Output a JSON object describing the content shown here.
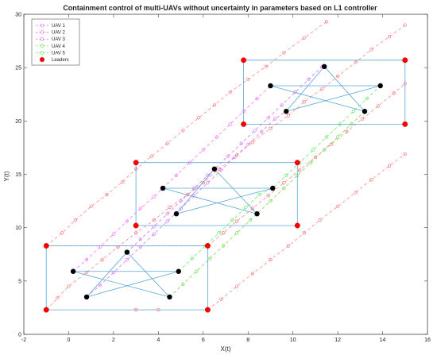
{
  "chart_data": {
    "type": "scatter",
    "title": "Containment control of multi-UAVs without uncertainty in parameters based on L1 controller",
    "xlabel": "X(t)",
    "ylabel": "Y(t)",
    "xlim": [
      -2,
      16
    ],
    "ylim": [
      0,
      30
    ],
    "xticks": [
      "-2",
      "0",
      "2",
      "4",
      "6",
      "8",
      "10",
      "12",
      "14",
      "16"
    ],
    "yticks": [
      "0",
      "5",
      "10",
      "15",
      "20",
      "25",
      "30"
    ],
    "grid": false,
    "legend_position": "top-left",
    "legend": [
      {
        "name": "UAV 1",
        "color": "#e066ff",
        "marker": "open-circle",
        "dashed": true
      },
      {
        "name": "UAV 2",
        "color": "#ff66ff",
        "marker": "open-circle",
        "dashed": true
      },
      {
        "name": "UAV 3",
        "color": "#cc66ff",
        "marker": "open-circle",
        "dashed": true
      },
      {
        "name": "UAV 4",
        "color": "#66dd44",
        "marker": "open-circle",
        "dashed": true
      },
      {
        "name": "UAV 5",
        "color": "#55ee55",
        "marker": "open-circle",
        "dashed": true
      },
      {
        "name": "Leaders",
        "color": "#ff0000",
        "marker": "filled-circle",
        "dashed": false
      }
    ],
    "leader_trajectories": [
      [
        [
          -1.0,
          2.3
        ],
        [
          -0.5,
          3.4
        ],
        [
          0.0,
          4.5
        ],
        [
          0.8,
          5.8
        ],
        [
          1.5,
          7.0
        ],
        [
          2.2,
          8.2
        ],
        [
          3.0,
          9.5
        ],
        [
          3.8,
          10.7
        ],
        [
          4.5,
          11.9
        ],
        [
          5.3,
          13.1
        ],
        [
          6.0,
          14.2
        ],
        [
          6.7,
          15.5
        ],
        [
          7.5,
          16.8
        ],
        [
          8.2,
          18.0
        ],
        [
          9.0,
          19.3
        ],
        [
          9.8,
          20.5
        ],
        [
          10.5,
          21.8
        ],
        [
          11.3,
          23.0
        ],
        [
          12.0,
          24.2
        ],
        [
          12.8,
          25.5
        ],
        [
          13.5,
          26.7
        ],
        [
          14.3,
          27.9
        ],
        [
          15.0,
          29.0
        ]
      ],
      [
        [
          6.2,
          2.3
        ],
        [
          6.8,
          3.3
        ],
        [
          7.5,
          4.5
        ],
        [
          8.2,
          5.7
        ],
        [
          9.0,
          7.0
        ],
        [
          9.8,
          8.3
        ],
        [
          10.5,
          9.5
        ],
        [
          11.2,
          10.7
        ],
        [
          12.0,
          12.0
        ],
        [
          12.8,
          13.3
        ],
        [
          13.5,
          14.5
        ],
        [
          14.3,
          15.8
        ],
        [
          15.0,
          16.9
        ]
      ],
      [
        [
          -1.0,
          8.3
        ],
        [
          -0.3,
          9.5
        ],
        [
          0.3,
          10.7
        ],
        [
          1.0,
          12.0
        ],
        [
          1.7,
          13.1
        ],
        [
          2.4,
          14.3
        ],
        [
          3.0,
          15.5
        ],
        [
          3.7,
          16.7
        ],
        [
          4.4,
          17.9
        ],
        [
          5.1,
          19.1
        ],
        [
          5.8,
          20.3
        ],
        [
          6.5,
          21.5
        ],
        [
          7.2,
          22.7
        ],
        [
          8.0,
          23.9
        ],
        [
          8.8,
          25.1
        ],
        [
          9.6,
          26.4
        ],
        [
          10.5,
          27.8
        ],
        [
          11.5,
          29.3
        ]
      ],
      [
        [
          6.2,
          8.3
        ],
        [
          6.9,
          9.5
        ],
        [
          7.5,
          10.6
        ],
        [
          8.2,
          11.8
        ],
        [
          8.9,
          13.0
        ],
        [
          9.6,
          14.2
        ],
        [
          10.3,
          15.4
        ],
        [
          11.0,
          16.6
        ],
        [
          11.7,
          17.8
        ],
        [
          12.4,
          19.0
        ],
        [
          13.1,
          20.2
        ],
        [
          13.8,
          21.4
        ],
        [
          14.5,
          22.6
        ],
        [
          15.0,
          23.5
        ]
      ],
      [
        [
          3.0,
          2.3
        ],
        [
          4.0,
          2.3
        ]
      ],
      [
        [
          -1.0,
          8.3
        ],
        [
          6.2,
          8.3
        ]
      ]
    ],
    "follower_trajectories": [
      [
        [
          0.8,
          3.5
        ],
        [
          1.4,
          4.6
        ],
        [
          2.0,
          5.8
        ],
        [
          2.6,
          7.0
        ],
        [
          3.2,
          8.2
        ],
        [
          3.8,
          9.4
        ],
        [
          4.4,
          10.6
        ],
        [
          5.0,
          11.8
        ],
        [
          5.6,
          13.0
        ],
        [
          6.2,
          14.2
        ],
        [
          6.8,
          15.4
        ],
        [
          7.4,
          16.6
        ],
        [
          8.0,
          17.8
        ],
        [
          8.6,
          19.0
        ],
        [
          9.2,
          20.2
        ],
        [
          9.7,
          20.9
        ]
      ],
      [
        [
          0.2,
          5.9
        ],
        [
          0.8,
          7.0
        ],
        [
          1.4,
          8.2
        ],
        [
          2.0,
          9.4
        ],
        [
          2.6,
          10.6
        ],
        [
          3.2,
          11.8
        ],
        [
          3.8,
          12.9
        ],
        [
          4.2,
          13.7
        ],
        [
          4.8,
          14.9
        ],
        [
          5.4,
          16.1
        ],
        [
          6.0,
          17.3
        ],
        [
          6.6,
          18.5
        ],
        [
          7.2,
          19.7
        ],
        [
          7.8,
          20.9
        ],
        [
          8.4,
          22.1
        ],
        [
          9.0,
          23.3
        ]
      ],
      [
        [
          2.6,
          7.7
        ],
        [
          3.2,
          8.9
        ],
        [
          3.8,
          10.1
        ],
        [
          4.4,
          11.3
        ],
        [
          5.0,
          12.5
        ],
        [
          5.6,
          13.7
        ],
        [
          6.2,
          14.9
        ],
        [
          6.5,
          15.5
        ],
        [
          7.1,
          16.7
        ],
        [
          7.7,
          17.9
        ],
        [
          8.3,
          19.1
        ],
        [
          8.9,
          20.3
        ],
        [
          9.5,
          21.5
        ],
        [
          10.1,
          22.7
        ],
        [
          10.7,
          23.9
        ],
        [
          11.3,
          25.1
        ]
      ],
      [
        [
          4.5,
          3.5
        ],
        [
          5.1,
          4.7
        ],
        [
          5.7,
          5.9
        ],
        [
          6.3,
          7.1
        ],
        [
          6.9,
          8.3
        ],
        [
          7.5,
          9.5
        ],
        [
          8.1,
          10.7
        ],
        [
          8.4,
          11.3
        ],
        [
          9.0,
          12.5
        ],
        [
          9.6,
          13.7
        ],
        [
          10.2,
          14.9
        ],
        [
          10.8,
          16.1
        ],
        [
          11.4,
          17.3
        ],
        [
          12.0,
          18.5
        ],
        [
          12.6,
          19.7
        ],
        [
          13.2,
          20.9
        ]
      ],
      [
        [
          4.9,
          5.9
        ],
        [
          5.5,
          7.1
        ],
        [
          6.1,
          8.3
        ],
        [
          6.7,
          9.5
        ],
        [
          7.3,
          10.7
        ],
        [
          7.9,
          11.9
        ],
        [
          8.5,
          13.1
        ],
        [
          9.1,
          13.7
        ],
        [
          9.7,
          14.9
        ],
        [
          10.3,
          16.1
        ],
        [
          10.9,
          17.3
        ],
        [
          11.5,
          18.5
        ],
        [
          12.1,
          19.7
        ],
        [
          12.7,
          20.9
        ],
        [
          13.3,
          22.1
        ],
        [
          13.9,
          23.3
        ]
      ]
    ],
    "snapshots": [
      {
        "leaders": [
          [
            -1.0,
            8.3
          ],
          [
            6.2,
            8.3
          ],
          [
            6.2,
            2.3
          ],
          [
            -1.0,
            2.3
          ]
        ],
        "followers": [
          [
            0.2,
            5.9
          ],
          [
            2.6,
            7.7
          ],
          [
            4.9,
            5.9
          ],
          [
            4.5,
            3.5
          ],
          [
            0.8,
            3.5
          ]
        ]
      },
      {
        "leaders": [
          [
            3.0,
            16.1
          ],
          [
            10.2,
            16.1
          ],
          [
            10.2,
            10.2
          ],
          [
            3.0,
            10.2
          ]
        ],
        "followers": [
          [
            4.2,
            13.7
          ],
          [
            6.5,
            15.5
          ],
          [
            9.1,
            13.7
          ],
          [
            8.4,
            11.3
          ],
          [
            4.8,
            11.3
          ]
        ]
      },
      {
        "leaders": [
          [
            7.8,
            25.7
          ],
          [
            15.0,
            25.7
          ],
          [
            15.0,
            19.7
          ],
          [
            7.8,
            19.7
          ]
        ],
        "followers": [
          [
            9.0,
            23.3
          ],
          [
            11.4,
            25.1
          ],
          [
            13.9,
            23.3
          ],
          [
            13.2,
            20.9
          ],
          [
            9.7,
            20.9
          ]
        ]
      }
    ],
    "follower_edges": [
      [
        0,
        2
      ],
      [
        0,
        3
      ],
      [
        1,
        3
      ],
      [
        1,
        4
      ],
      [
        2,
        4
      ]
    ]
  },
  "colors": {
    "leader": "#ff0000",
    "follower": "#000000",
    "formation": "#5aa7d6",
    "axis": "#444444"
  }
}
